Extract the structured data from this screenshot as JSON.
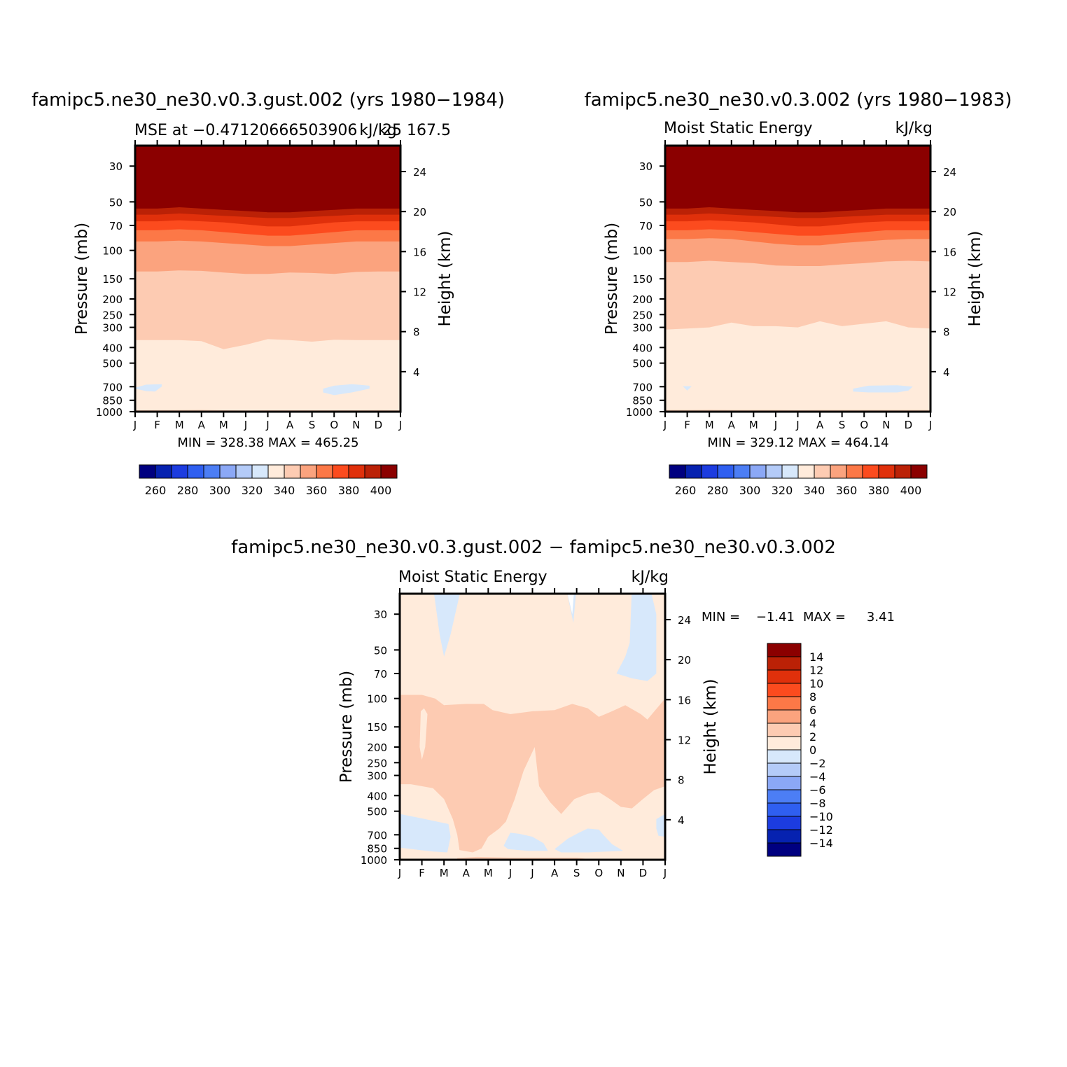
{
  "chart_data": [
    {
      "type": "heatmap",
      "title": "famipc5.ne30_ne30.v0.3.gust.002 (yrs 1980−1984)",
      "left_string": "MSE at −0.47120666503906",
      "center_string": "kJ/kg",
      "right_string": "25 167.5",
      "xlabel": "",
      "ylabel": "Pressure (mb)",
      "ylabel_right": "Height (km)",
      "x_ticks": [
        "J",
        "F",
        "M",
        "A",
        "M",
        "J",
        "J",
        "A",
        "S",
        "O",
        "N",
        "D",
        "J"
      ],
      "y_ticks": [
        "30",
        "50",
        "70",
        "100",
        "150",
        "200",
        "250",
        "300",
        "400",
        "500",
        "700",
        "850",
        "1000"
      ],
      "y_ticks_right": [
        "24",
        "20",
        "16",
        "12",
        "8",
        "4"
      ],
      "ylim": [
        20,
        1000
      ],
      "y_scale": "log-pressure",
      "stats": "MIN = 328.38 MAX = 465.25",
      "contour_levels": [
        260,
        270,
        280,
        290,
        300,
        310,
        320,
        330,
        340,
        350,
        360,
        370,
        380,
        390,
        400
      ],
      "boundaries": [
        {
          "level": 400,
          "pressure": [
            55,
            55,
            54,
            55,
            56,
            57,
            58,
            58,
            57,
            56,
            55,
            55,
            55
          ]
        },
        {
          "level": 390,
          "pressure": [
            60,
            60,
            59,
            60,
            61,
            62,
            63,
            63,
            62,
            61,
            60,
            60,
            60
          ]
        },
        {
          "level": 380,
          "pressure": [
            66,
            66,
            65,
            66,
            67,
            69,
            71,
            71,
            69,
            67,
            66,
            66,
            66
          ]
        },
        {
          "level": 370,
          "pressure": [
            75,
            75,
            74,
            75,
            77,
            79,
            81,
            81,
            79,
            77,
            75,
            75,
            75
          ]
        },
        {
          "level": 360,
          "pressure": [
            88,
            88,
            87,
            88,
            90,
            92,
            94,
            94,
            92,
            90,
            88,
            88,
            88
          ]
        },
        {
          "level": 350,
          "pressure": [
            135,
            135,
            133,
            134,
            137,
            140,
            140,
            137,
            138,
            140,
            136,
            135,
            135
          ]
        },
        {
          "level": 340,
          "pressure": [
            360,
            360,
            360,
            365,
            410,
            385,
            355,
            360,
            368,
            358,
            360,
            360,
            360
          ]
        },
        {
          "level": 330,
          "pressure": [
            980,
            978,
            976,
            974,
            980,
            982,
            980,
            980,
            980,
            980,
            980,
            978,
            980
          ]
        }
      ],
      "blobs": [
        {
          "x": [
            0.0,
            0.5,
            1.2,
            1.2,
            0.9,
            0.5,
            0.0
          ],
          "p": [
            710,
            680,
            675,
            700,
            750,
            745,
            720
          ]
        },
        {
          "x": [
            8.5,
            9.0,
            9.8,
            10.6,
            10.6,
            9.8,
            9.0,
            8.5
          ],
          "p": [
            720,
            690,
            675,
            690,
            720,
            760,
            790,
            760
          ]
        }
      ],
      "colorbar": {
        "labels": [
          "260",
          "280",
          "300",
          "320",
          "340",
          "360",
          "380",
          "400"
        ]
      }
    },
    {
      "type": "heatmap",
      "title": "famipc5.ne30_ne30.v0.3.002 (yrs 1980−1983)",
      "left_string": "Moist Static Energy",
      "center_string": "",
      "right_string": "kJ/kg",
      "xlabel": "",
      "ylabel": "Pressure (mb)",
      "ylabel_right": "Height (km)",
      "x_ticks": [
        "J",
        "F",
        "M",
        "A",
        "M",
        "J",
        "J",
        "A",
        "S",
        "O",
        "N",
        "D",
        "J"
      ],
      "y_ticks": [
        "30",
        "50",
        "70",
        "100",
        "150",
        "200",
        "250",
        "300",
        "400",
        "500",
        "700",
        "850",
        "1000"
      ],
      "y_ticks_right": [
        "24",
        "20",
        "16",
        "12",
        "8",
        "4"
      ],
      "ylim": [
        20,
        1000
      ],
      "y_scale": "log-pressure",
      "stats": "MIN = 329.12 MAX = 464.14",
      "contour_levels": [
        260,
        270,
        280,
        290,
        300,
        310,
        320,
        330,
        340,
        350,
        360,
        370,
        380,
        390,
        400
      ],
      "boundaries": [
        {
          "level": 400,
          "pressure": [
            55,
            55,
            54,
            55,
            56,
            57,
            58,
            58,
            57,
            56,
            55,
            55,
            55
          ]
        },
        {
          "level": 390,
          "pressure": [
            60,
            60,
            59,
            60,
            61,
            62,
            63,
            63,
            62,
            61,
            60,
            60,
            60
          ]
        },
        {
          "level": 380,
          "pressure": [
            66,
            66,
            65,
            66,
            67,
            69,
            71,
            71,
            69,
            67,
            66,
            66,
            66
          ]
        },
        {
          "level": 370,
          "pressure": [
            75,
            75,
            74,
            75,
            77,
            79,
            81,
            81,
            79,
            77,
            75,
            75,
            75
          ]
        },
        {
          "level": 360,
          "pressure": [
            85,
            85,
            84,
            85,
            88,
            91,
            93,
            93,
            90,
            88,
            86,
            85,
            85
          ]
        },
        {
          "level": 350,
          "pressure": [
            118,
            118,
            116,
            118,
            120,
            124,
            125,
            125,
            122,
            120,
            117,
            116,
            117
          ]
        },
        {
          "level": 340,
          "pressure": [
            310,
            305,
            300,
            280,
            295,
            295,
            300,
            275,
            295,
            285,
            275,
            300,
            305
          ]
        },
        {
          "level": 330,
          "pressure": [
            975,
            975,
            972,
            975,
            975,
            975,
            978,
            975,
            975,
            975,
            975,
            975,
            975
          ]
        }
      ],
      "blobs": [
        {
          "x": [
            0.8,
            1.2,
            1.0
          ],
          "p": [
            695,
            695,
            740
          ]
        },
        {
          "x": [
            8.5,
            9.2,
            10.5,
            11.2,
            11.0,
            10.5,
            9.2,
            8.5
          ],
          "p": [
            720,
            690,
            685,
            700,
            740,
            760,
            760,
            750
          ]
        }
      ],
      "colorbar": {
        "labels": [
          "260",
          "280",
          "300",
          "320",
          "340",
          "360",
          "380",
          "400"
        ]
      }
    },
    {
      "type": "heatmap",
      "title": "famipc5.ne30_ne30.v0.3.gust.002 − famipc5.ne30_ne30.v0.3.002",
      "left_string": "Moist Static Energy",
      "center_string": "",
      "right_string": "kJ/kg",
      "xlabel": "",
      "ylabel": "Pressure (mb)",
      "ylabel_right": "Height (km)",
      "x_ticks": [
        "J",
        "F",
        "M",
        "A",
        "M",
        "J",
        "J",
        "A",
        "S",
        "O",
        "N",
        "D",
        "J"
      ],
      "y_ticks": [
        "30",
        "50",
        "70",
        "100",
        "150",
        "200",
        "250",
        "300",
        "400",
        "500",
        "700",
        "850",
        "1000"
      ],
      "y_ticks_right": [
        "24",
        "20",
        "16",
        "12",
        "8",
        "4"
      ],
      "ylim": [
        20,
        1000
      ],
      "y_scale": "log-pressure",
      "stats_min_label": "MIN =",
      "stats_min": "−1.41",
      "stats_max_label": "MAX =",
      "stats_max": "3.41",
      "contour_levels": [
        -14,
        -12,
        -10,
        -8,
        -6,
        -4,
        -2,
        0,
        2,
        4,
        6,
        8,
        10,
        12,
        14
      ],
      "region_2to4": {
        "top": [
          [
            0.0,
            95
          ],
          [
            1.0,
            95
          ],
          [
            1.6,
            100
          ],
          [
            2.0,
            110
          ],
          [
            3.0,
            108
          ],
          [
            3.8,
            108
          ],
          [
            4.2,
            118
          ],
          [
            5.0,
            125
          ],
          [
            6.0,
            120
          ],
          [
            7.0,
            118
          ],
          [
            7.8,
            108
          ],
          [
            8.5,
            115
          ],
          [
            9.0,
            130
          ],
          [
            9.6,
            120
          ],
          [
            10.2,
            110
          ],
          [
            10.9,
            125
          ],
          [
            11.2,
            135
          ],
          [
            12.0,
            100
          ]
        ],
        "bottom": [
          [
            12.0,
            350
          ],
          [
            11.5,
            370
          ],
          [
            11.0,
            420
          ],
          [
            10.5,
            480
          ],
          [
            10.0,
            470
          ],
          [
            9.5,
            420
          ],
          [
            9.0,
            380
          ],
          [
            8.5,
            390
          ],
          [
            7.9,
            420
          ],
          [
            7.3,
            520
          ],
          [
            6.8,
            440
          ],
          [
            6.3,
            350
          ],
          [
            6.1,
            200
          ],
          [
            5.6,
            280
          ],
          [
            5.2,
            420
          ],
          [
            4.8,
            580
          ],
          [
            4.5,
            640
          ],
          [
            4.0,
            720
          ],
          [
            3.7,
            850
          ],
          [
            3.3,
            900
          ],
          [
            2.7,
            870
          ],
          [
            2.6,
            700
          ],
          [
            2.4,
            560
          ],
          [
            2.0,
            420
          ],
          [
            1.5,
            360
          ],
          [
            0.5,
            340
          ],
          [
            0.0,
            340
          ]
        ]
      },
      "blobs_pos_hole": [
        [
          [
            0.95,
            120
          ],
          [
            1.1,
            115
          ],
          [
            1.25,
            125
          ],
          [
            1.15,
            200
          ],
          [
            1.0,
            240
          ],
          [
            0.9,
            200
          ]
        ]
      ],
      "blobs_neg": [
        [
          [
            1.5,
            20
          ],
          [
            2.8,
            20
          ],
          [
            2.3,
            40
          ],
          [
            2.0,
            55
          ],
          [
            1.8,
            40
          ]
        ],
        [
          [
            7.5,
            20
          ],
          [
            8.0,
            20
          ],
          [
            7.85,
            34
          ]
        ],
        [
          [
            10.5,
            20
          ],
          [
            11.3,
            20
          ],
          [
            11.6,
            30
          ],
          [
            11.6,
            70
          ],
          [
            11.2,
            78
          ],
          [
            10.5,
            75
          ],
          [
            9.8,
            70
          ],
          [
            10.2,
            55
          ],
          [
            10.4,
            45
          ]
        ],
        [
          [
            0.0,
            520
          ],
          [
            0.9,
            550
          ],
          [
            2.2,
            600
          ],
          [
            2.3,
            720
          ],
          [
            2.15,
            900
          ],
          [
            1.5,
            890
          ],
          [
            0.9,
            870
          ],
          [
            0.0,
            840
          ]
        ],
        [
          [
            4.7,
            820
          ],
          [
            5.0,
            680
          ],
          [
            5.4,
            690
          ],
          [
            6.0,
            720
          ],
          [
            6.5,
            790
          ],
          [
            6.7,
            880
          ],
          [
            5.8,
            880
          ],
          [
            4.9,
            860
          ]
        ],
        [
          [
            7.0,
            860
          ],
          [
            7.6,
            740
          ],
          [
            8.1,
            680
          ],
          [
            8.5,
            640
          ],
          [
            9.0,
            650
          ],
          [
            9.2,
            700
          ],
          [
            9.6,
            800
          ],
          [
            10.1,
            880
          ],
          [
            8.5,
            900
          ],
          [
            7.3,
            900
          ]
        ],
        [
          [
            11.6,
            560
          ],
          [
            12.0,
            520
          ],
          [
            12.0,
            720
          ],
          [
            11.7,
            710
          ],
          [
            11.6,
            640
          ]
        ]
      ],
      "colorbar": {
        "labels": [
          "14",
          "12",
          "10",
          "8",
          "6",
          "4",
          "2",
          "0",
          "−2",
          "−4",
          "−6",
          "−8",
          "−10",
          "−12",
          "−14"
        ]
      }
    }
  ],
  "colors": {
    "mse_palette": [
      "#000080",
      "#0622B0",
      "#1C3CE0",
      "#2F5FF0",
      "#4C7EF5",
      "#8BA8F6",
      "#B4CBF8",
      "#D7E8FB",
      "#FFEBDB",
      "#FDCBB2",
      "#FBA37E",
      "#FC7847",
      "#FC4B1E",
      "#E0300B",
      "#BB2106",
      "#8B0000"
    ],
    "diff_palette": [
      "#000080",
      "#0622B0",
      "#1C3CE0",
      "#2F5FF0",
      "#4C7EF5",
      "#8BA8F6",
      "#B4CBF8",
      "#D7E8FB",
      "#FFEBDB",
      "#FDCBB2",
      "#FBA37E",
      "#FC7847",
      "#FC4B1E",
      "#E0300B",
      "#BB2106",
      "#8B0000"
    ]
  }
}
